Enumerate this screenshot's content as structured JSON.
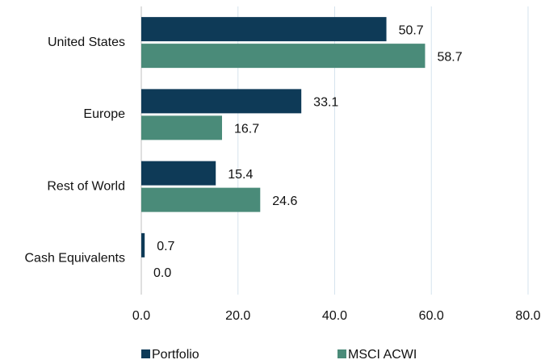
{
  "chart_data": {
    "type": "hbar",
    "categories": [
      "United States",
      "Europe",
      "Rest of World",
      "Cash Equivalents"
    ],
    "series": [
      {
        "name": "Portfolio",
        "color": "#0e3a57",
        "values": [
          50.7,
          33.1,
          15.4,
          0.7
        ],
        "value_labels": [
          "50.7",
          "33.1",
          "15.4",
          "0.7"
        ]
      },
      {
        "name": "MSCI ACWI",
        "color": "#4a8b79",
        "values": [
          58.7,
          16.7,
          24.6,
          0.0
        ],
        "value_labels": [
          "58.7",
          "16.7",
          "24.6",
          "0.0"
        ]
      }
    ],
    "xlim": [
      0,
      80
    ],
    "xticks": [
      {
        "value": 0,
        "label": "0.0"
      },
      {
        "value": 20,
        "label": "20.0"
      },
      {
        "value": 40,
        "label": "40.0"
      },
      {
        "value": 60,
        "label": "60.0"
      },
      {
        "value": 80,
        "label": "80.0"
      }
    ],
    "grid": true,
    "legend": "bottom"
  }
}
